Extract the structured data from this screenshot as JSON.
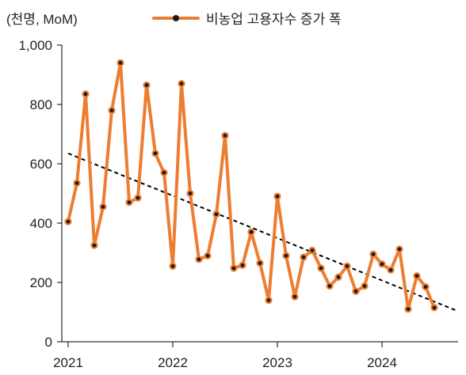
{
  "unit_label": "(천명, MoM)",
  "legend": {
    "label": "비농업 고용자수 증가 폭"
  },
  "colors": {
    "series": "#ED7D31",
    "marker": "#1a1a1a",
    "trend": "#000000",
    "axis": "#000000"
  },
  "chart_data": {
    "type": "line",
    "ylim": [
      0,
      1000
    ],
    "yticks": [
      0,
      200,
      400,
      600,
      800,
      1000
    ],
    "ytick_labels": [
      "0",
      "200",
      "400",
      "600",
      "800",
      "1,000"
    ],
    "xticks": [
      "2021",
      "2022",
      "2023",
      "2024"
    ],
    "grid": false,
    "legend_position": "top-center",
    "series": [
      {
        "name": "비농업 고용자수 증가 폭",
        "values": [
          405,
          535,
          835,
          325,
          455,
          780,
          940,
          470,
          485,
          865,
          635,
          570,
          255,
          870,
          500,
          278,
          290,
          430,
          695,
          248,
          258,
          370,
          265,
          140,
          490,
          290,
          152,
          285,
          308,
          248,
          188,
          218,
          255,
          170,
          188,
          295,
          262,
          242,
          312,
          110,
          222,
          185,
          115
        ]
      }
    ],
    "trendline": {
      "style": "dashed",
      "start": 635,
      "end": 105
    }
  }
}
